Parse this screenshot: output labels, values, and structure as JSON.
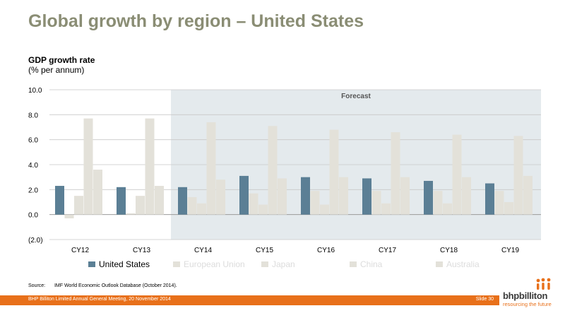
{
  "slide": {
    "title": "Global growth by region – United States",
    "subtitle": "GDP growth rate",
    "units": "(% per annum)",
    "forecast_label": "Forecast",
    "source_label": "Source:",
    "source_text": "IMF World Economic Outlook Database (October 2014).",
    "footer_text": "BHP Billiton Limited Annual General Meeting, 20 November 2014",
    "slide_number": "Slide 30",
    "logo_wordmark": "bhpbilliton",
    "logo_tagline": "resourcing the future"
  },
  "colors": {
    "title": "#8a8d74",
    "highlight_series": "#5b7f95",
    "muted_series": "#e3e1d9",
    "forecast_background": "#e4eaed",
    "gridline": "#c8c8c8",
    "footer": "#e8701a",
    "legend_muted_text": "#dcdcdc"
  },
  "chart_data": {
    "type": "bar",
    "title": "GDP growth rate",
    "ylabel": "(% per annum)",
    "ylim": [
      -2,
      10
    ],
    "yticks": [
      "10.0",
      "8.0",
      "6.0",
      "4.0",
      "2.0",
      "0.0",
      "(2.0)"
    ],
    "ytick_values": [
      10,
      8,
      6,
      4,
      2,
      0,
      -2
    ],
    "categories": [
      "CY12",
      "CY13",
      "CY14",
      "CY15",
      "CY16",
      "CY17",
      "CY18",
      "CY19"
    ],
    "forecast_from": "CY14",
    "grid": true,
    "legend_position": "bottom",
    "series": [
      {
        "name": "United States",
        "highlight": true,
        "values": [
          2.3,
          2.2,
          2.2,
          3.1,
          3.0,
          2.9,
          2.7,
          2.5
        ]
      },
      {
        "name": "European Union",
        "highlight": false,
        "values": [
          -0.3,
          0.1,
          1.4,
          1.7,
          1.9,
          1.9,
          1.9,
          1.9
        ]
      },
      {
        "name": "Japan",
        "highlight": false,
        "values": [
          1.5,
          1.5,
          0.9,
          0.8,
          0.8,
          0.9,
          0.9,
          1.0
        ]
      },
      {
        "name": "China",
        "highlight": false,
        "values": [
          7.7,
          7.7,
          7.4,
          7.1,
          6.8,
          6.6,
          6.4,
          6.3
        ]
      },
      {
        "name": "Australia",
        "highlight": false,
        "values": [
          3.6,
          2.3,
          2.8,
          2.9,
          3.0,
          3.0,
          3.0,
          3.1
        ]
      }
    ]
  }
}
